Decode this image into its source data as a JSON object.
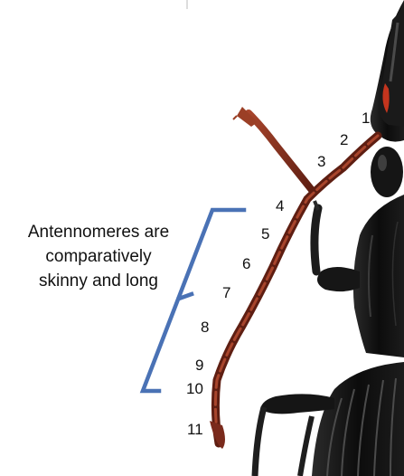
{
  "caption": {
    "line1": "Antennomeres are",
    "line2": "comparatively",
    "line3": "skinny and long"
  },
  "segment_labels": [
    "1",
    "2",
    "3",
    "4",
    "5",
    "6",
    "7",
    "8",
    "9",
    "10",
    "11"
  ],
  "colors": {
    "bracket": "#4a72b5",
    "antenna": "#7a2a1c",
    "antenna_highlight": "#a8452c",
    "body": "#141414",
    "body_highlight": "#3a3a3a",
    "red_accent": "#c4351e",
    "text": "#111111"
  }
}
